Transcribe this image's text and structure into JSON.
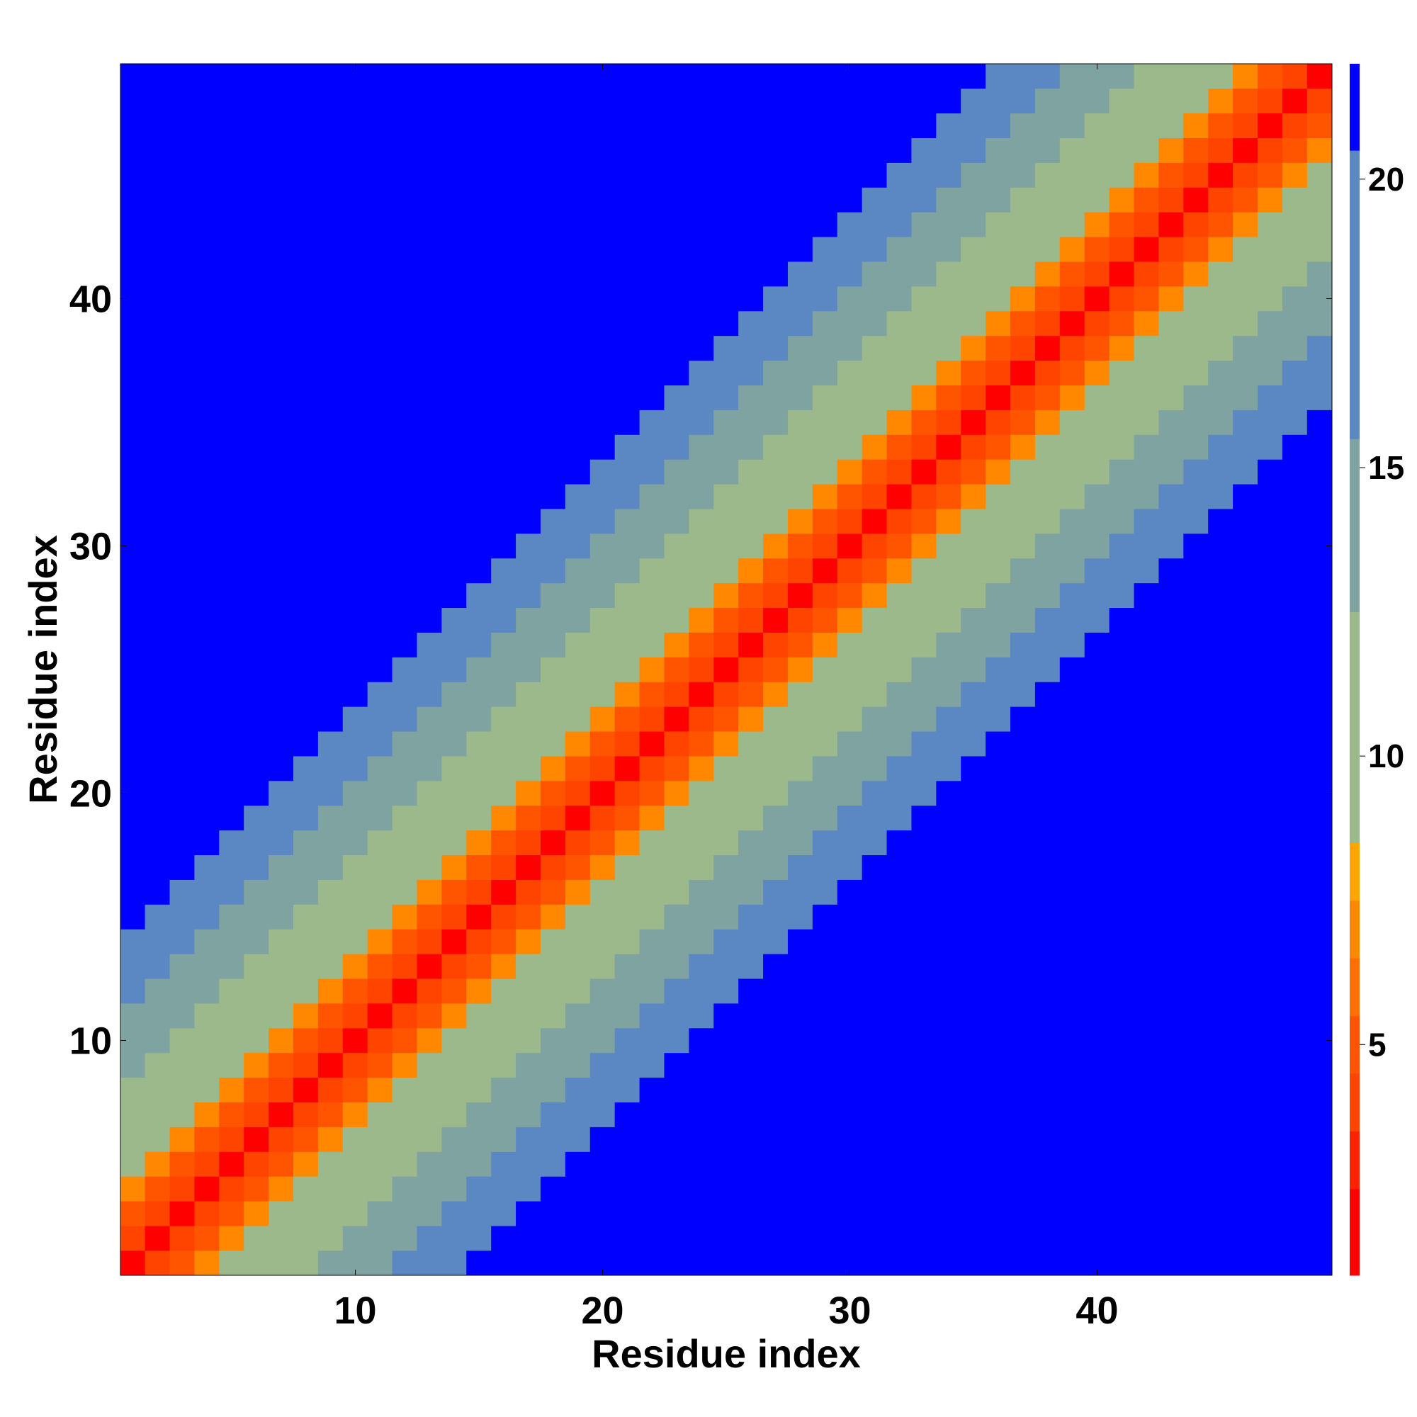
{
  "chart_data": {
    "type": "heatmap",
    "title": "",
    "xlabel": "Residue index",
    "ylabel": "Residue index",
    "n_residues": 49,
    "xlim": [
      0.5,
      49.5
    ],
    "ylim": [
      0.5,
      49.5
    ],
    "x_ticks": [
      10,
      20,
      30,
      40
    ],
    "y_ticks": [
      10,
      20,
      30,
      40
    ],
    "colorbar": {
      "ticks": [
        5,
        10,
        15,
        20
      ],
      "range": [
        1,
        22
      ],
      "levels": [
        {
          "max": 2.5,
          "color": "#ff0000"
        },
        {
          "max": 3.5,
          "color": "#ff2200"
        },
        {
          "max": 4.5,
          "color": "#ff4400"
        },
        {
          "max": 5.5,
          "color": "#ff5500"
        },
        {
          "max": 6.5,
          "color": "#ff7000"
        },
        {
          "max": 7.5,
          "color": "#ff8800"
        },
        {
          "max": 8.5,
          "color": "#ffa500"
        },
        {
          "max": 12.5,
          "color": "#9bb98a"
        },
        {
          "max": 15.5,
          "color": "#7fa3a0"
        },
        {
          "max": 20.5,
          "color": "#5b88c2"
        },
        {
          "max": 22,
          "color": "#0000ff"
        }
      ]
    },
    "distance_profile": [
      {
        "offset": 0,
        "value": 1
      },
      {
        "offset": 1,
        "value": 3.8
      },
      {
        "offset": 2,
        "value": 5.5
      },
      {
        "offset": 3,
        "value": 7.5
      },
      {
        "offset": 4,
        "value": 9
      },
      {
        "offset": 6,
        "value": 11
      },
      {
        "offset": 8,
        "value": 13
      },
      {
        "offset": 10,
        "value": 15
      },
      {
        "offset": 12,
        "value": 17
      },
      {
        "offset": 14,
        "value": 21
      }
    ]
  },
  "colors": {
    "background": "#ffffff",
    "far": "#0000ff",
    "near": "#ff0000"
  }
}
